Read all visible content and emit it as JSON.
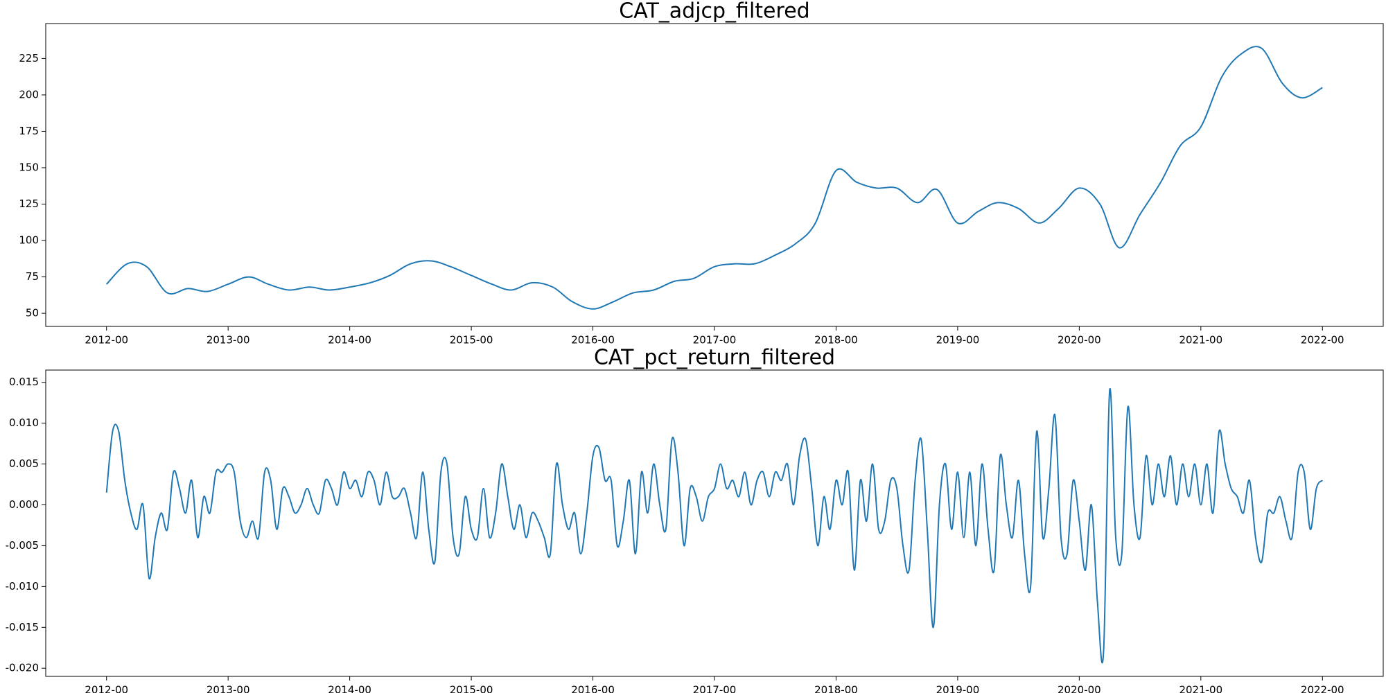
{
  "chart_data": [
    {
      "type": "line",
      "title": "CAT_adjcp_filtered",
      "color": "#1f77b4",
      "x": [
        2012,
        2012.17,
        2012.33,
        2012.5,
        2012.67,
        2012.83,
        2013,
        2013.17,
        2013.33,
        2013.5,
        2013.67,
        2013.83,
        2014,
        2014.17,
        2014.33,
        2014.5,
        2014.67,
        2014.83,
        2015,
        2015.17,
        2015.33,
        2015.5,
        2015.67,
        2015.83,
        2016,
        2016.17,
        2016.33,
        2016.5,
        2016.67,
        2016.83,
        2017,
        2017.17,
        2017.33,
        2017.5,
        2017.67,
        2017.83,
        2018,
        2018.17,
        2018.33,
        2018.5,
        2018.67,
        2018.83,
        2019,
        2019.17,
        2019.33,
        2019.5,
        2019.67,
        2019.83,
        2020,
        2020.17,
        2020.33,
        2020.5,
        2020.67,
        2020.83,
        2021,
        2021.17,
        2021.33,
        2021.5,
        2021.67,
        2021.83,
        2022
      ],
      "values": [
        70,
        84,
        82,
        64,
        67,
        65,
        70,
        75,
        70,
        66,
        68,
        66,
        68,
        71,
        76,
        84,
        86,
        82,
        76,
        70,
        66,
        71,
        68,
        58,
        53,
        58,
        64,
        66,
        72,
        74,
        82,
        84,
        84,
        90,
        98,
        112,
        148,
        140,
        136,
        136,
        126,
        135,
        112,
        120,
        126,
        122,
        112,
        122,
        136,
        125,
        95,
        118,
        140,
        165,
        178,
        212,
        228,
        232,
        208,
        198,
        205
      ],
      "xlim": [
        2011.5,
        2022.5
      ],
      "ylim": [
        41,
        249
      ],
      "xticks": [
        {
          "value": 2012,
          "label": "2012-00"
        },
        {
          "value": 2013,
          "label": "2013-00"
        },
        {
          "value": 2014,
          "label": "2014-00"
        },
        {
          "value": 2015,
          "label": "2015-00"
        },
        {
          "value": 2016,
          "label": "2016-00"
        },
        {
          "value": 2017,
          "label": "2017-00"
        },
        {
          "value": 2018,
          "label": "2018-00"
        },
        {
          "value": 2019,
          "label": "2019-00"
        },
        {
          "value": 2020,
          "label": "2020-00"
        },
        {
          "value": 2021,
          "label": "2021-00"
        },
        {
          "value": 2022,
          "label": "2022-00"
        }
      ],
      "yticks": [
        50,
        75,
        100,
        125,
        150,
        175,
        200,
        225
      ]
    },
    {
      "type": "line",
      "title": "CAT_pct_return_filtered",
      "color": "#1f77b4",
      "x": [
        2012,
        2012.05,
        2012.1,
        2012.15,
        2012.2,
        2012.25,
        2012.3,
        2012.35,
        2012.4,
        2012.45,
        2012.5,
        2012.55,
        2012.6,
        2012.65,
        2012.7,
        2012.75,
        2012.8,
        2012.85,
        2012.9,
        2012.95,
        2013,
        2013.05,
        2013.1,
        2013.15,
        2013.2,
        2013.25,
        2013.3,
        2013.35,
        2013.4,
        2013.45,
        2013.5,
        2013.55,
        2013.6,
        2013.65,
        2013.7,
        2013.75,
        2013.8,
        2013.85,
        2013.9,
        2013.95,
        2014,
        2014.05,
        2014.1,
        2014.15,
        2014.2,
        2014.25,
        2014.3,
        2014.35,
        2014.4,
        2014.45,
        2014.5,
        2014.55,
        2014.6,
        2014.65,
        2014.7,
        2014.75,
        2014.8,
        2014.85,
        2014.9,
        2014.95,
        2015,
        2015.05,
        2015.1,
        2015.15,
        2015.2,
        2015.25,
        2015.3,
        2015.35,
        2015.4,
        2015.45,
        2015.5,
        2015.55,
        2015.6,
        2015.65,
        2015.7,
        2015.75,
        2015.8,
        2015.85,
        2015.9,
        2015.95,
        2016,
        2016.05,
        2016.1,
        2016.15,
        2016.2,
        2016.25,
        2016.3,
        2016.35,
        2016.4,
        2016.45,
        2016.5,
        2016.55,
        2016.6,
        2016.65,
        2016.7,
        2016.75,
        2016.8,
        2016.85,
        2016.9,
        2016.95,
        2017,
        2017.05,
        2017.1,
        2017.15,
        2017.2,
        2017.25,
        2017.3,
        2017.35,
        2017.4,
        2017.45,
        2017.5,
        2017.55,
        2017.6,
        2017.65,
        2017.7,
        2017.75,
        2017.8,
        2017.85,
        2017.9,
        2017.95,
        2018,
        2018.05,
        2018.1,
        2018.15,
        2018.2,
        2018.25,
        2018.3,
        2018.35,
        2018.4,
        2018.45,
        2018.5,
        2018.55,
        2018.6,
        2018.65,
        2018.7,
        2018.75,
        2018.8,
        2018.85,
        2018.9,
        2018.95,
        2019,
        2019.05,
        2019.1,
        2019.15,
        2019.2,
        2019.25,
        2019.3,
        2019.35,
        2019.4,
        2019.45,
        2019.5,
        2019.55,
        2019.6,
        2019.65,
        2019.7,
        2019.75,
        2019.8,
        2019.85,
        2019.9,
        2019.95,
        2020,
        2020.05,
        2020.1,
        2020.15,
        2020.2,
        2020.25,
        2020.3,
        2020.35,
        2020.4,
        2020.45,
        2020.5,
        2020.55,
        2020.6,
        2020.65,
        2020.7,
        2020.75,
        2020.8,
        2020.85,
        2020.9,
        2020.95,
        2021,
        2021.05,
        2021.1,
        2021.15,
        2021.2,
        2021.25,
        2021.3,
        2021.35,
        2021.4,
        2021.45,
        2021.5,
        2021.55,
        2021.6,
        2021.65,
        2021.7,
        2021.75,
        2021.8,
        2021.85,
        2021.9,
        2021.95,
        2022
      ],
      "values": [
        0.0015,
        0.009,
        0.009,
        0.003,
        -0.001,
        -0.003,
        0.0,
        -0.009,
        -0.004,
        -0.001,
        -0.003,
        0.004,
        0.002,
        -0.001,
        0.003,
        -0.004,
        0.001,
        -0.001,
        0.004,
        0.004,
        0.005,
        0.004,
        -0.002,
        -0.004,
        -0.002,
        -0.004,
        0.004,
        0.003,
        -0.003,
        0.002,
        0.001,
        -0.001,
        0.0,
        0.002,
        0.0,
        -0.001,
        0.003,
        0.002,
        0.0,
        0.004,
        0.002,
        0.003,
        0.001,
        0.004,
        0.003,
        0.0,
        0.004,
        0.001,
        0.001,
        0.002,
        -0.001,
        -0.004,
        0.004,
        -0.003,
        -0.007,
        0.004,
        0.005,
        -0.004,
        -0.006,
        0.001,
        -0.003,
        -0.004,
        0.002,
        -0.004,
        -0.001,
        0.005,
        0.001,
        -0.003,
        0.0,
        -0.004,
        -0.001,
        -0.002,
        -0.004,
        -0.006,
        0.005,
        0.0,
        -0.003,
        -0.001,
        -0.006,
        -0.001,
        0.006,
        0.007,
        0.003,
        0.003,
        -0.005,
        -0.002,
        0.003,
        -0.006,
        0.004,
        -0.001,
        0.005,
        0.0,
        -0.003,
        0.008,
        0.004,
        -0.005,
        0.002,
        0.001,
        -0.002,
        0.001,
        0.002,
        0.005,
        0.002,
        0.003,
        0.001,
        0.004,
        0.0,
        0.003,
        0.004,
        0.001,
        0.004,
        0.003,
        0.005,
        0.0,
        0.006,
        0.008,
        0.002,
        -0.005,
        0.001,
        -0.003,
        0.003,
        0.0,
        0.004,
        -0.008,
        0.003,
        -0.002,
        0.005,
        -0.003,
        -0.002,
        0.003,
        0.002,
        -0.005,
        -0.008,
        0.003,
        0.008,
        -0.003,
        -0.015,
        0.0,
        0.005,
        -0.003,
        0.004,
        -0.004,
        0.004,
        -0.005,
        0.005,
        -0.003,
        -0.008,
        0.006,
        0.0,
        -0.004,
        0.003,
        -0.006,
        -0.01,
        0.009,
        -0.004,
        0.002,
        0.011,
        -0.004,
        -0.006,
        0.003,
        -0.002,
        -0.008,
        0.0,
        -0.012,
        -0.018,
        0.014,
        -0.004,
        -0.006,
        0.012,
        0.0,
        -0.004,
        0.006,
        0.0,
        0.005,
        0.001,
        0.006,
        0.0,
        0.005,
        0.001,
        0.005,
        0.0,
        0.005,
        -0.001,
        0.009,
        0.005,
        0.002,
        0.001,
        -0.001,
        0.003,
        -0.004,
        -0.007,
        -0.001,
        -0.001,
        0.001,
        -0.002,
        -0.004,
        0.004,
        0.004,
        -0.003,
        0.002,
        0.003
      ],
      "xlim": [
        2011.5,
        2022.5
      ],
      "ylim": [
        -0.021,
        0.0165
      ],
      "xticks": [
        {
          "value": 2012,
          "label": "2012-00"
        },
        {
          "value": 2013,
          "label": "2013-00"
        },
        {
          "value": 2014,
          "label": "2014-00"
        },
        {
          "value": 2015,
          "label": "2015-00"
        },
        {
          "value": 2016,
          "label": "2016-00"
        },
        {
          "value": 2017,
          "label": "2017-00"
        },
        {
          "value": 2018,
          "label": "2018-00"
        },
        {
          "value": 2019,
          "label": "2019-00"
        },
        {
          "value": 2020,
          "label": "2020-00"
        },
        {
          "value": 2021,
          "label": "2021-00"
        },
        {
          "value": 2022,
          "label": "2022-00"
        }
      ],
      "yticks": [
        {
          "value": -0.02,
          "label": "-0.020"
        },
        {
          "value": -0.015,
          "label": "-0.015"
        },
        {
          "value": -0.01,
          "label": "-0.010"
        },
        {
          "value": -0.005,
          "label": "-0.005"
        },
        {
          "value": 0,
          "label": "0.000"
        },
        {
          "value": 0.005,
          "label": "0.005"
        },
        {
          "value": 0.01,
          "label": "0.010"
        },
        {
          "value": 0.015,
          "label": "0.015"
        }
      ]
    }
  ]
}
